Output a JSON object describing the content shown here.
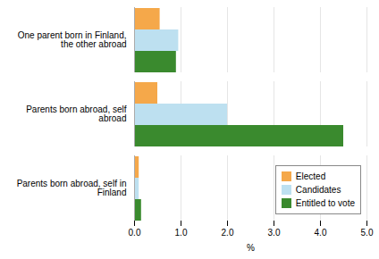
{
  "chart_data": {
    "type": "bar",
    "orientation": "horizontal",
    "categories": [
      "One parent born in Finland,\nthe other abroad",
      "Parents born abroad, self\nabroad",
      "Parents born abroad, self in\nFinland"
    ],
    "series": [
      {
        "name": "Elected",
        "color": "#f5a84a",
        "values": [
          0.55,
          0.5,
          0.1
        ]
      },
      {
        "name": "Candidates",
        "color": "#bde0f0",
        "values": [
          0.95,
          2.0,
          0.1
        ]
      },
      {
        "name": "Entitled to vote",
        "color": "#3a8a2e",
        "values": [
          0.9,
          4.5,
          0.15
        ]
      }
    ],
    "xlabel": "%",
    "xlim": [
      0,
      5
    ],
    "xticks": [
      0,
      1,
      2,
      3,
      4,
      5
    ],
    "grid": true,
    "legend": "lower right"
  }
}
